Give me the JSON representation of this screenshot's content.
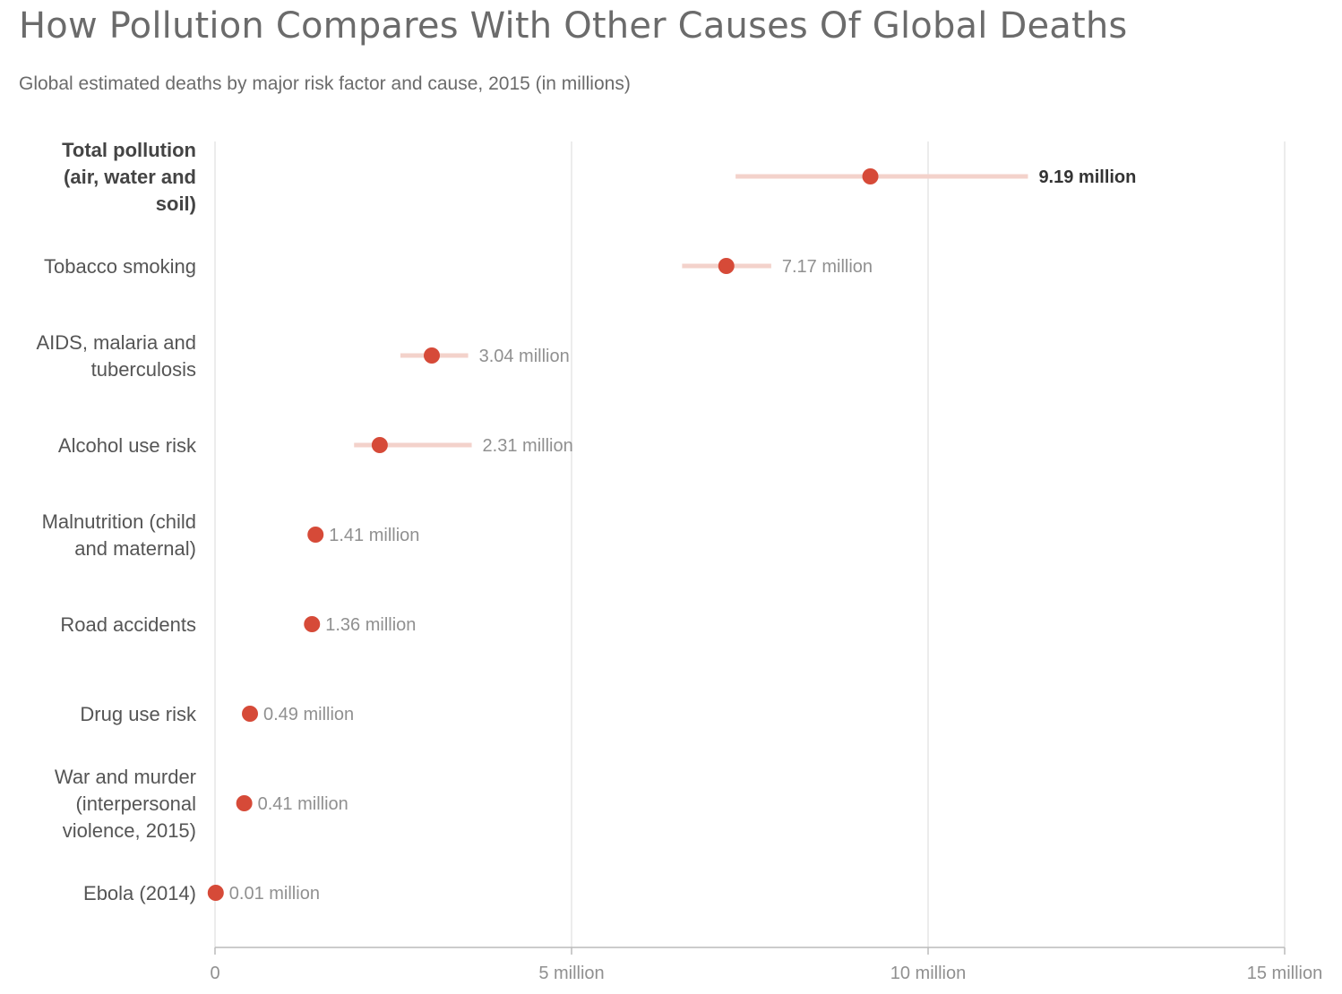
{
  "title": "How Pollution Compares With Other Causes Of Global Deaths",
  "subtitle": "Global estimated deaths by major risk factor and cause, 2015 (in millions)",
  "colors": {
    "dot": "#d64a38",
    "range": "#f3d2cb",
    "grid": "#e6e6e6",
    "axis": "#bbbbbb"
  },
  "chart_data": {
    "type": "scatter",
    "title": "How Pollution Compares With Other Causes Of Global Deaths",
    "subtitle": "Global estimated deaths by major risk factor and cause, 2015 (in millions)",
    "xlabel": "",
    "ylabel": "",
    "xlim": [
      0,
      15
    ],
    "x_ticks": [
      0,
      5,
      10,
      15
    ],
    "x_tick_labels": [
      "0",
      "5 million",
      "10 million",
      "15 million"
    ],
    "grid": true,
    "items": [
      {
        "label_lines": [
          "Total pollution",
          "(air, water and",
          "soil)"
        ],
        "value": 9.19,
        "low": 7.3,
        "high": 11.4,
        "value_label": "9.19 million",
        "highlight": true
      },
      {
        "label_lines": [
          "Tobacco smoking"
        ],
        "value": 7.17,
        "low": 6.55,
        "high": 7.8,
        "value_label": "7.17 million",
        "highlight": false
      },
      {
        "label_lines": [
          "AIDS, malaria and",
          "tuberculosis"
        ],
        "value": 3.04,
        "low": 2.6,
        "high": 3.55,
        "value_label": "3.04 million",
        "highlight": false
      },
      {
        "label_lines": [
          "Alcohol use risk"
        ],
        "value": 2.31,
        "low": 1.95,
        "high": 3.6,
        "value_label": "2.31 million",
        "highlight": false
      },
      {
        "label_lines": [
          "Malnutrition (child",
          "and maternal)"
        ],
        "value": 1.41,
        "low": null,
        "high": null,
        "value_label": "1.41 million",
        "highlight": false
      },
      {
        "label_lines": [
          "Road accidents"
        ],
        "value": 1.36,
        "low": null,
        "high": null,
        "value_label": "1.36 million",
        "highlight": false
      },
      {
        "label_lines": [
          "Drug use risk"
        ],
        "value": 0.49,
        "low": null,
        "high": null,
        "value_label": "0.49 million",
        "highlight": false
      },
      {
        "label_lines": [
          "War and murder",
          "(interpersonal",
          "violence, 2015)"
        ],
        "value": 0.41,
        "low": null,
        "high": null,
        "value_label": "0.41 million",
        "highlight": false
      },
      {
        "label_lines": [
          "Ebola (2014)"
        ],
        "value": 0.01,
        "low": null,
        "high": null,
        "value_label": "0.01 million",
        "highlight": false
      }
    ]
  }
}
